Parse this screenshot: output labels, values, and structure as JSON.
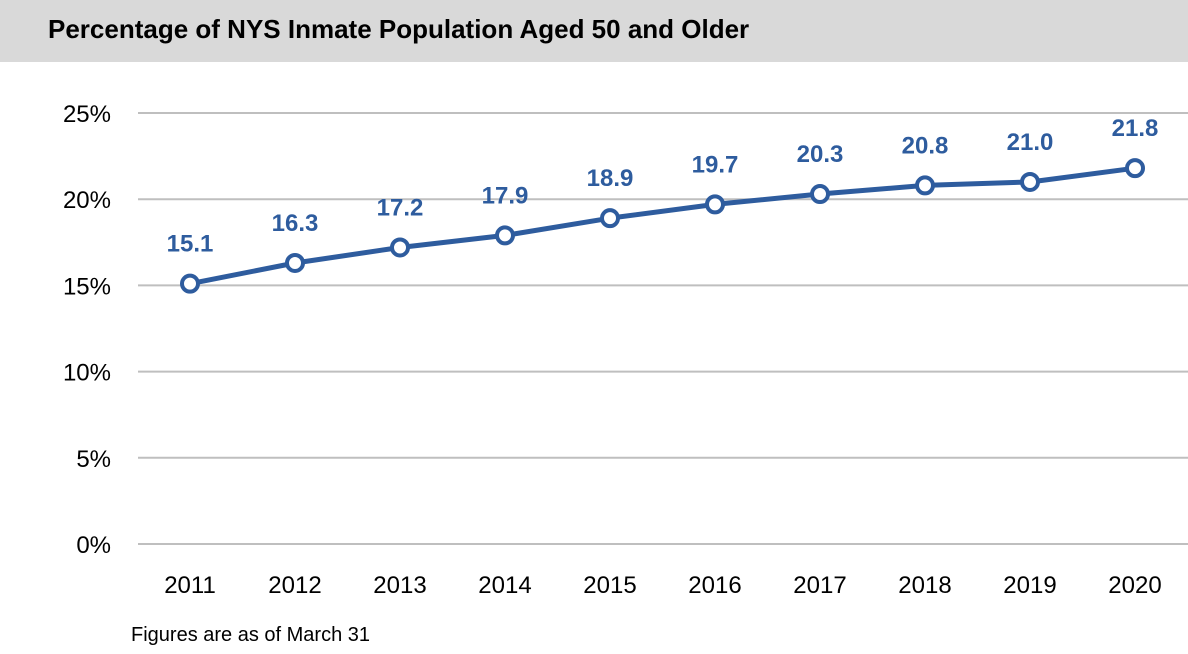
{
  "title": "Percentage of NYS Inmate Population Aged 50 and Older",
  "footnote": "Figures are as of March 31",
  "colors": {
    "title_background": "#d9d9d9",
    "line": "#2e5c9e",
    "label": "#2e5c9e",
    "grid": "#bfbfbf",
    "axis_text": "#000000"
  },
  "chart_data": {
    "type": "line",
    "categories": [
      "2011",
      "2012",
      "2013",
      "2014",
      "2015",
      "2016",
      "2017",
      "2018",
      "2019",
      "2020"
    ],
    "series": [
      {
        "values": [
          15.1,
          16.3,
          17.2,
          17.9,
          18.9,
          19.7,
          20.3,
          20.8,
          21.0,
          21.8
        ],
        "data_labels": [
          "15.1",
          "16.3",
          "17.2",
          "17.9",
          "18.9",
          "19.7",
          "20.3",
          "20.8",
          "21.0",
          "21.8"
        ]
      }
    ],
    "ylim": [
      0,
      25
    ],
    "y_ticks": [
      0,
      5,
      10,
      15,
      20,
      25
    ],
    "y_tick_labels": [
      "0%",
      "5%",
      "10%",
      "15%",
      "20%",
      "25%"
    ],
    "grid": true,
    "markers": "hollow-circle"
  }
}
